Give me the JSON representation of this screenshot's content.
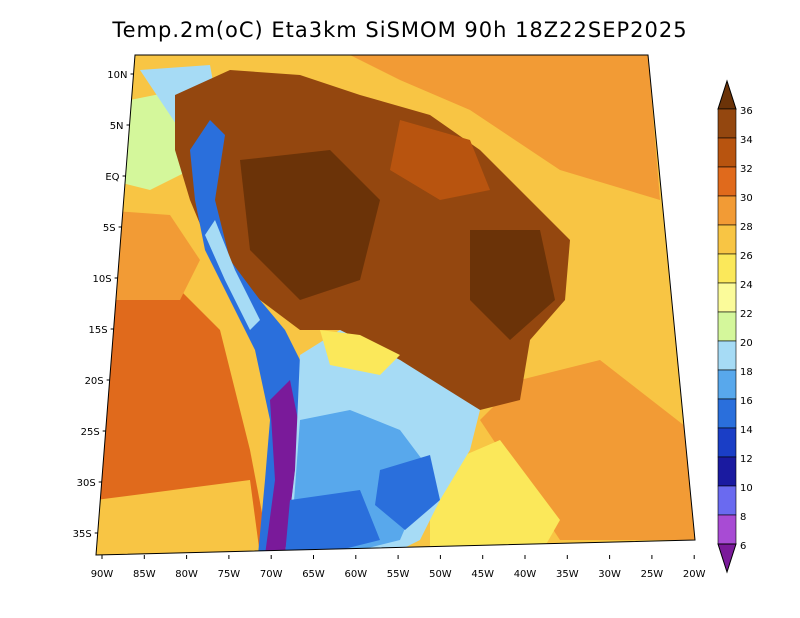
{
  "title": "Temp.2m(oC) Eta3km SiSMOM 90h 18Z22SEP2025",
  "lat_labels": [
    "10N",
    "5N",
    "EQ",
    "5S",
    "10S",
    "15S",
    "20S",
    "25S",
    "30S",
    "35S"
  ],
  "lon_labels": [
    "90W",
    "85W",
    "80W",
    "75W",
    "70W",
    "65W",
    "60W",
    "55W",
    "50W",
    "45W",
    "40W",
    "35W",
    "30W",
    "25W",
    "20W"
  ],
  "colorbar": {
    "labels": [
      "36",
      "34",
      "32",
      "30",
      "28",
      "26",
      "24",
      "22",
      "20",
      "18",
      "16",
      "14",
      "12",
      "10",
      "8",
      "6"
    ],
    "colors": [
      "#6b3308",
      "#94470f",
      "#b8540f",
      "#e06a1c",
      "#f29b35",
      "#f8c544",
      "#fbe85a",
      "#fbfb9a",
      "#d4f79b",
      "#a6dbf5",
      "#58a8ec",
      "#2a6fdc",
      "#1a3ec6",
      "#1a1aa0",
      "#6a6af0",
      "#a84bd4",
      "#7a1a9a"
    ]
  }
}
